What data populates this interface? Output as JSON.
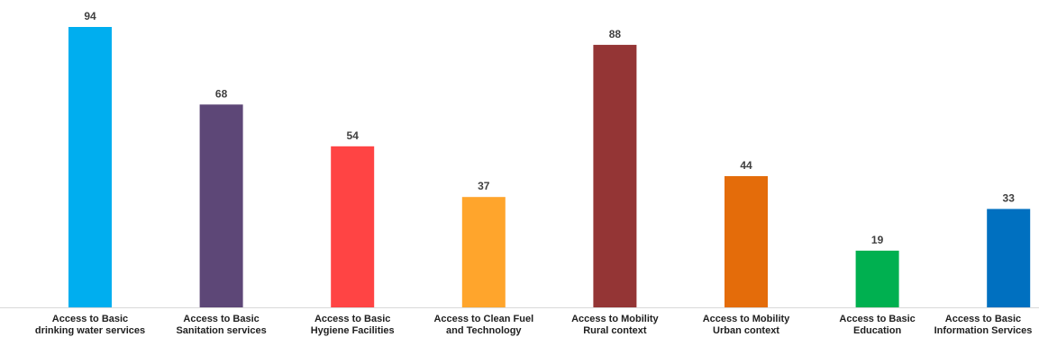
{
  "chart_data": {
    "type": "bar",
    "categories": [
      "Access to Basic drinking water services",
      "Access to Basic Sanitation services",
      "Access to Basic Hygiene Facilities",
      "Access to Clean Fuel and Technology",
      "Access to Mobility Rural context",
      "Access to Mobility Urban context",
      "Access to Basic Education",
      "Access to Basic Information Services"
    ],
    "values": [
      94,
      68,
      54,
      37,
      88,
      44,
      19,
      33
    ],
    "data_labels": [
      "94",
      "68",
      "54",
      "37",
      "88",
      "44",
      "19",
      "33"
    ],
    "colors": [
      "#00AEEF",
      "#5D4777",
      "#FF4444",
      "#FFA52C",
      "#943535",
      "#E46C0A",
      "#00B050",
      "#0070C0"
    ],
    "ylim": [
      0,
      100
    ],
    "grid": false,
    "legend": "none",
    "title": "",
    "xlabel": "",
    "ylabel": ""
  }
}
